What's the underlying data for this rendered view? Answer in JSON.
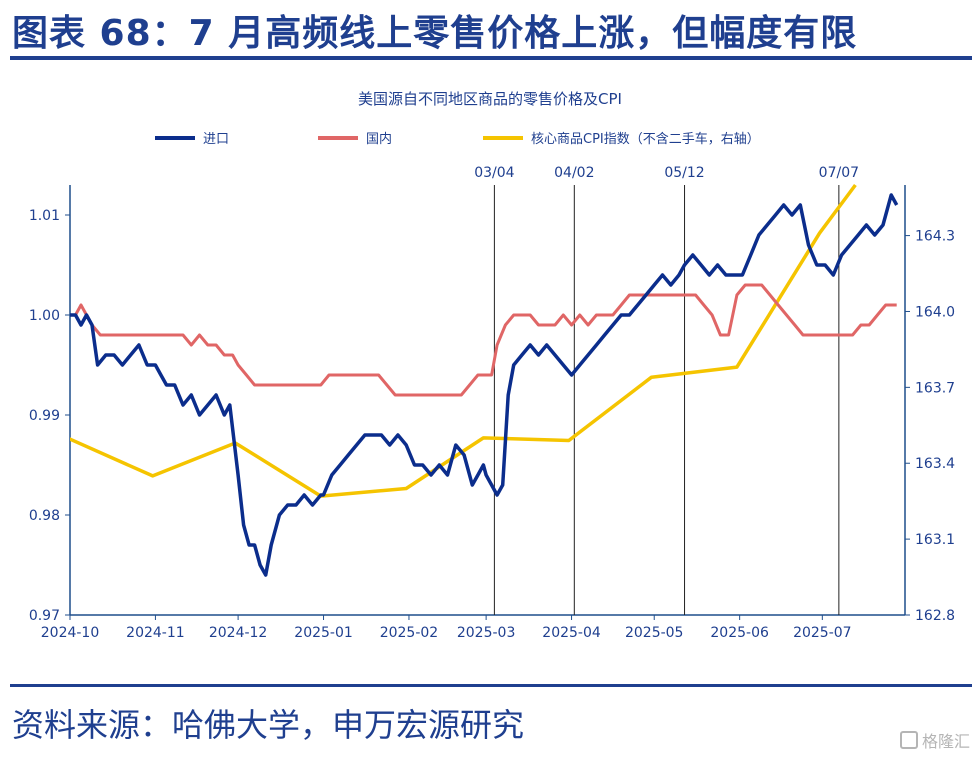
{
  "header": {
    "title": "图表 68：7 月高频线上零售价格上涨，但幅度有限"
  },
  "footer": {
    "source": "资料来源：哈佛大学，申万宏源研究"
  },
  "watermark": {
    "text": "格隆汇"
  },
  "colors": {
    "brand": "#1f3f8f",
    "import": "#0b2d8c",
    "domestic": "#e06666",
    "cpi": "#f5c400",
    "axis": "#1f4e8c"
  },
  "chart_data": {
    "type": "line",
    "title": "美国源自不同地区商品的零售价格及CPI",
    "legend_placement": "top",
    "grid": false,
    "x_ticks": [
      "2024-10",
      "2024-11",
      "2024-12",
      "2025-01",
      "2025-02",
      "2025-03",
      "2025-04",
      "2025-05",
      "2025-06",
      "2025-07"
    ],
    "y_left": {
      "range": [
        0.97,
        1.013
      ],
      "ticks": [
        "1.01",
        "1.00",
        "0.99",
        "0.98",
        "0.97"
      ],
      "tick_values": [
        1.01,
        1.0,
        0.99,
        0.98,
        0.97
      ]
    },
    "y_right": {
      "range": [
        162.8,
        164.5
      ],
      "ticks": [
        "164.3",
        "164.0",
        "163.7",
        "163.4",
        "163.1",
        "162.8"
      ],
      "tick_values": [
        164.3,
        164.0,
        163.7,
        163.4,
        163.1,
        162.8
      ]
    },
    "vlines": [
      {
        "label": "03/04",
        "date": "2025-03-04"
      },
      {
        "label": "04/02",
        "date": "2025-04-02"
      },
      {
        "label": "05/12",
        "date": "2025-05-12"
      },
      {
        "label": "07/07",
        "date": "2025-07-07"
      }
    ],
    "series": [
      {
        "name": "进口",
        "axis": "left",
        "color": "#0b2d8c",
        "x": [
          "2024-10-01",
          "2024-10-03",
          "2024-10-05",
          "2024-10-07",
          "2024-10-09",
          "2024-10-11",
          "2024-10-14",
          "2024-10-17",
          "2024-10-20",
          "2024-10-23",
          "2024-10-26",
          "2024-10-29",
          "2024-11-01",
          "2024-11-03",
          "2024-11-05",
          "2024-11-08",
          "2024-11-11",
          "2024-11-14",
          "2024-11-17",
          "2024-11-20",
          "2024-11-23",
          "2024-11-26",
          "2024-11-28",
          "2024-12-01",
          "2024-12-03",
          "2024-12-05",
          "2024-12-07",
          "2024-12-09",
          "2024-12-11",
          "2024-12-13",
          "2024-12-16",
          "2024-12-19",
          "2024-12-22",
          "2024-12-25",
          "2024-12-28",
          "2024-12-31",
          "2025-01-01",
          "2025-01-04",
          "2025-01-07",
          "2025-01-10",
          "2025-01-13",
          "2025-01-16",
          "2025-01-19",
          "2025-01-22",
          "2025-01-25",
          "2025-01-28",
          "2025-01-31",
          "2025-02-03",
          "2025-02-06",
          "2025-02-09",
          "2025-02-12",
          "2025-02-15",
          "2025-02-18",
          "2025-02-21",
          "2025-02-24",
          "2025-02-26",
          "2025-02-28",
          "2025-03-01",
          "2025-03-03",
          "2025-03-05",
          "2025-03-07",
          "2025-03-09",
          "2025-03-11",
          "2025-03-14",
          "2025-03-17",
          "2025-03-20",
          "2025-03-23",
          "2025-03-26",
          "2025-03-29",
          "2025-04-01",
          "2025-04-04",
          "2025-04-07",
          "2025-04-10",
          "2025-04-13",
          "2025-04-16",
          "2025-04-19",
          "2025-04-22",
          "2025-04-25",
          "2025-04-28",
          "2025-05-01",
          "2025-05-04",
          "2025-05-07",
          "2025-05-10",
          "2025-05-12",
          "2025-05-15",
          "2025-05-18",
          "2025-05-21",
          "2025-05-24",
          "2025-05-27",
          "2025-05-30",
          "2025-06-02",
          "2025-06-05",
          "2025-06-08",
          "2025-06-11",
          "2025-06-14",
          "2025-06-17",
          "2025-06-20",
          "2025-06-23",
          "2025-06-26",
          "2025-06-29",
          "2025-07-02",
          "2025-07-05",
          "2025-07-08",
          "2025-07-11",
          "2025-07-14",
          "2025-07-17",
          "2025-07-20",
          "2025-07-23",
          "2025-07-26",
          "2025-07-28"
        ],
        "y": [
          1.0,
          1.0,
          0.999,
          1.0,
          0.999,
          0.995,
          0.996,
          0.996,
          0.995,
          0.996,
          0.997,
          0.995,
          0.995,
          0.994,
          0.993,
          0.993,
          0.991,
          0.992,
          0.99,
          0.991,
          0.992,
          0.99,
          0.991,
          0.984,
          0.979,
          0.977,
          0.977,
          0.975,
          0.974,
          0.977,
          0.98,
          0.981,
          0.981,
          0.982,
          0.981,
          0.982,
          0.982,
          0.984,
          0.985,
          0.986,
          0.987,
          0.988,
          0.988,
          0.988,
          0.987,
          0.988,
          0.987,
          0.985,
          0.985,
          0.984,
          0.985,
          0.984,
          0.987,
          0.986,
          0.983,
          0.984,
          0.985,
          0.984,
          0.983,
          0.982,
          0.983,
          0.992,
          0.995,
          0.996,
          0.997,
          0.996,
          0.997,
          0.996,
          0.995,
          0.994,
          0.995,
          0.996,
          0.997,
          0.998,
          0.999,
          1.0,
          1.0,
          1.001,
          1.002,
          1.003,
          1.004,
          1.003,
          1.004,
          1.005,
          1.006,
          1.005,
          1.004,
          1.005,
          1.004,
          1.004,
          1.004,
          1.006,
          1.008,
          1.009,
          1.01,
          1.011,
          1.01,
          1.011,
          1.007,
          1.005,
          1.005,
          1.004,
          1.006,
          1.007,
          1.008,
          1.009,
          1.008,
          1.009,
          1.012,
          1.011
        ]
      },
      {
        "name": "国内",
        "axis": "left",
        "color": "#e06666",
        "x": [
          "2024-10-01",
          "2024-10-03",
          "2024-10-05",
          "2024-10-07",
          "2024-10-09",
          "2024-10-12",
          "2024-10-15",
          "2024-10-18",
          "2024-10-21",
          "2024-10-24",
          "2024-10-27",
          "2024-10-30",
          "2024-11-02",
          "2024-11-05",
          "2024-11-08",
          "2024-11-11",
          "2024-11-14",
          "2024-11-17",
          "2024-11-20",
          "2024-11-23",
          "2024-11-26",
          "2024-11-29",
          "2024-12-01",
          "2024-12-04",
          "2024-12-07",
          "2024-12-10",
          "2024-12-13",
          "2024-12-16",
          "2024-12-19",
          "2024-12-22",
          "2024-12-25",
          "2024-12-28",
          "2024-12-31",
          "2025-01-03",
          "2025-01-06",
          "2025-01-09",
          "2025-01-12",
          "2025-01-15",
          "2025-01-18",
          "2025-01-21",
          "2025-01-24",
          "2025-01-27",
          "2025-01-30",
          "2025-02-02",
          "2025-02-05",
          "2025-02-08",
          "2025-02-11",
          "2025-02-14",
          "2025-02-17",
          "2025-02-20",
          "2025-02-23",
          "2025-02-26",
          "2025-03-01",
          "2025-03-03",
          "2025-03-05",
          "2025-03-08",
          "2025-03-11",
          "2025-03-14",
          "2025-03-17",
          "2025-03-20",
          "2025-03-23",
          "2025-03-26",
          "2025-03-29",
          "2025-04-01",
          "2025-04-04",
          "2025-04-07",
          "2025-04-10",
          "2025-04-13",
          "2025-04-16",
          "2025-04-19",
          "2025-04-22",
          "2025-04-25",
          "2025-04-28",
          "2025-05-01",
          "2025-05-04",
          "2025-05-07",
          "2025-05-10",
          "2025-05-13",
          "2025-05-16",
          "2025-05-19",
          "2025-05-22",
          "2025-05-25",
          "2025-05-28",
          "2025-05-31",
          "2025-06-03",
          "2025-06-06",
          "2025-06-09",
          "2025-06-12",
          "2025-06-15",
          "2025-06-18",
          "2025-06-21",
          "2025-06-24",
          "2025-06-27",
          "2025-06-30",
          "2025-07-03",
          "2025-07-06",
          "2025-07-09",
          "2025-07-12",
          "2025-07-15",
          "2025-07-18",
          "2025-07-21",
          "2025-07-24",
          "2025-07-27",
          "2025-07-28"
        ],
        "y": [
          1.0,
          1.0,
          1.001,
          1.0,
          0.999,
          0.998,
          0.998,
          0.998,
          0.998,
          0.998,
          0.998,
          0.998,
          0.998,
          0.998,
          0.998,
          0.998,
          0.997,
          0.998,
          0.997,
          0.997,
          0.996,
          0.996,
          0.995,
          0.994,
          0.993,
          0.993,
          0.993,
          0.993,
          0.993,
          0.993,
          0.993,
          0.993,
          0.993,
          0.994,
          0.994,
          0.994,
          0.994,
          0.994,
          0.994,
          0.994,
          0.993,
          0.992,
          0.992,
          0.992,
          0.992,
          0.992,
          0.992,
          0.992,
          0.992,
          0.992,
          0.993,
          0.994,
          0.994,
          0.994,
          0.997,
          0.999,
          1.0,
          1.0,
          1.0,
          0.999,
          0.999,
          0.999,
          1.0,
          0.999,
          1.0,
          0.999,
          1.0,
          1.0,
          1.0,
          1.001,
          1.002,
          1.002,
          1.002,
          1.002,
          1.002,
          1.002,
          1.002,
          1.002,
          1.002,
          1.001,
          1.0,
          0.998,
          0.998,
          1.002,
          1.003,
          1.003,
          1.003,
          1.002,
          1.001,
          1.0,
          0.999,
          0.998,
          0.998,
          0.998,
          0.998,
          0.998,
          0.998,
          0.998,
          0.999,
          0.999,
          1.0,
          1.001,
          1.001,
          1.001
        ]
      },
      {
        "name": "核心商品CPI指数（不含二手车，右轴）",
        "axis": "right",
        "color": "#f5c400",
        "x": [
          "2024-09-30",
          "2024-10-31",
          "2024-11-30",
          "2024-12-31",
          "2025-01-31",
          "2025-02-28",
          "2025-03-31",
          "2025-04-30",
          "2025-05-31",
          "2025-06-30",
          "2025-07-13"
        ],
        "y": [
          163.5,
          163.35,
          163.48,
          163.27,
          163.3,
          163.5,
          163.49,
          163.74,
          163.78,
          164.31,
          164.5
        ]
      }
    ]
  }
}
